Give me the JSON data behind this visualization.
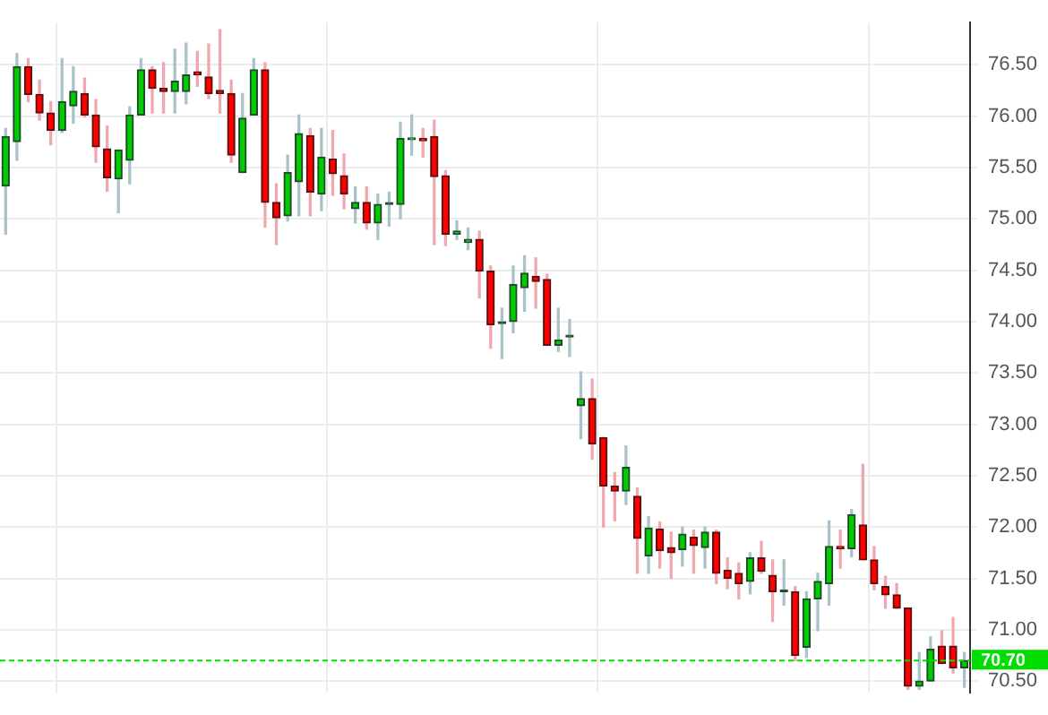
{
  "chart_data": {
    "type": "candlestick",
    "categories": [
      null,
      null,
      null,
      null,
      null,
      null,
      null,
      null,
      null,
      null,
      null,
      null,
      null,
      null,
      null,
      null,
      null,
      null,
      null,
      null,
      null,
      null,
      null,
      null,
      null,
      null,
      null,
      null,
      null,
      null,
      null,
      null,
      null,
      null,
      null,
      null,
      null,
      null,
      null,
      null,
      null,
      null,
      null,
      null,
      null,
      null,
      null,
      null,
      null,
      null,
      null,
      null,
      null,
      null,
      null,
      null,
      null,
      null,
      null,
      null,
      null,
      null,
      null,
      null,
      null,
      null,
      null,
      null,
      null,
      null,
      null,
      null,
      null,
      null,
      null,
      null,
      null,
      null,
      null,
      null,
      null,
      null,
      null,
      null,
      null,
      null
    ],
    "ohlc": [
      [
        75.32,
        75.88,
        74.85,
        75.8
      ],
      [
        75.75,
        76.61,
        75.57,
        76.48
      ],
      [
        76.48,
        76.56,
        76.14,
        76.21
      ],
      [
        76.21,
        76.35,
        75.96,
        76.03
      ],
      [
        76.03,
        76.14,
        75.72,
        75.86
      ],
      [
        75.86,
        76.56,
        75.84,
        76.14
      ],
      [
        76.1,
        76.48,
        75.93,
        76.24
      ],
      [
        76.22,
        76.37,
        75.99,
        76.01
      ],
      [
        76.01,
        76.16,
        75.55,
        75.7
      ],
      [
        75.68,
        75.9,
        75.27,
        75.4
      ],
      [
        75.39,
        75.67,
        75.06,
        75.67
      ],
      [
        75.57,
        76.09,
        75.34,
        76.01
      ],
      [
        76.01,
        76.56,
        76.01,
        76.45
      ],
      [
        76.45,
        76.48,
        76.03,
        76.27
      ],
      [
        76.27,
        76.52,
        76.03,
        76.24
      ],
      [
        76.24,
        76.65,
        76.03,
        76.34
      ],
      [
        76.24,
        76.71,
        76.12,
        76.4
      ],
      [
        76.43,
        76.63,
        76.29,
        76.4
      ],
      [
        76.38,
        76.7,
        76.17,
        76.22
      ],
      [
        76.25,
        76.84,
        76.03,
        76.22
      ],
      [
        76.22,
        76.35,
        75.55,
        75.62
      ],
      [
        75.45,
        76.22,
        75.45,
        75.98
      ],
      [
        76.01,
        76.56,
        76.01,
        76.45
      ],
      [
        76.45,
        76.52,
        74.92,
        75.16
      ],
      [
        75.16,
        75.34,
        74.75,
        75.01
      ],
      [
        75.03,
        75.62,
        74.98,
        75.45
      ],
      [
        75.36,
        76.01,
        75.03,
        75.83
      ],
      [
        75.81,
        75.88,
        75.03,
        75.26
      ],
      [
        75.24,
        75.88,
        75.08,
        75.6
      ],
      [
        75.58,
        75.86,
        75.23,
        75.44
      ],
      [
        75.42,
        75.63,
        75.1,
        75.24
      ],
      [
        75.1,
        75.31,
        74.96,
        75.16
      ],
      [
        75.16,
        75.31,
        74.9,
        74.96
      ],
      [
        74.96,
        75.24,
        74.8,
        75.14
      ],
      [
        75.14,
        75.26,
        74.93,
        75.14
      ],
      [
        75.14,
        75.94,
        75.0,
        75.78
      ],
      [
        75.77,
        76.01,
        75.62,
        75.78
      ],
      [
        75.78,
        75.88,
        75.6,
        75.76
      ],
      [
        75.8,
        75.96,
        74.75,
        75.41
      ],
      [
        75.42,
        75.47,
        74.74,
        74.85
      ],
      [
        74.85,
        74.98,
        74.8,
        74.88
      ],
      [
        74.77,
        74.91,
        74.7,
        74.8
      ],
      [
        74.8,
        74.88,
        74.23,
        74.49
      ],
      [
        74.49,
        74.54,
        73.74,
        73.97
      ],
      [
        73.98,
        74.13,
        73.64,
        73.98
      ],
      [
        74.0,
        74.54,
        73.89,
        74.36
      ],
      [
        74.33,
        74.64,
        74.1,
        74.47
      ],
      [
        74.44,
        74.62,
        74.13,
        74.39
      ],
      [
        74.41,
        74.46,
        73.77,
        73.77
      ],
      [
        73.77,
        74.13,
        73.71,
        73.82
      ],
      [
        73.85,
        74.02,
        73.66,
        73.85
      ],
      [
        73.18,
        73.51,
        72.86,
        73.25
      ],
      [
        73.25,
        73.44,
        72.66,
        72.81
      ],
      [
        72.87,
        72.87,
        72.0,
        72.4
      ],
      [
        72.4,
        72.53,
        72.06,
        72.35
      ],
      [
        72.35,
        72.79,
        72.22,
        72.58
      ],
      [
        72.3,
        72.38,
        71.55,
        71.89
      ],
      [
        71.72,
        72.1,
        71.55,
        71.99
      ],
      [
        71.98,
        72.05,
        71.6,
        71.77
      ],
      [
        71.8,
        71.95,
        71.5,
        71.75
      ],
      [
        71.78,
        72.0,
        71.62,
        71.93
      ],
      [
        71.9,
        71.97,
        71.55,
        71.82
      ],
      [
        71.8,
        72.0,
        71.6,
        71.95
      ],
      [
        71.95,
        71.97,
        71.45,
        71.55
      ],
      [
        71.58,
        71.7,
        71.4,
        71.5
      ],
      [
        71.55,
        71.65,
        71.3,
        71.45
      ],
      [
        71.47,
        71.75,
        71.35,
        71.7
      ],
      [
        71.7,
        71.86,
        71.55,
        71.57
      ],
      [
        71.53,
        71.68,
        71.08,
        71.37
      ],
      [
        71.37,
        71.68,
        71.24,
        71.37
      ],
      [
        71.37,
        71.42,
        70.7,
        70.75
      ],
      [
        70.83,
        71.37,
        70.73,
        71.3
      ],
      [
        71.3,
        71.55,
        70.99,
        71.47
      ],
      [
        71.45,
        72.06,
        71.24,
        71.81
      ],
      [
        71.81,
        71.97,
        71.6,
        71.79
      ],
      [
        71.79,
        72.17,
        71.71,
        72.12
      ],
      [
        72.02,
        72.61,
        71.68,
        71.68
      ],
      [
        71.68,
        71.81,
        71.39,
        71.45
      ],
      [
        71.42,
        71.52,
        71.21,
        71.34
      ],
      [
        71.34,
        71.45,
        71.21,
        71.21
      ],
      [
        71.21,
        71.21,
        70.42,
        70.45
      ],
      [
        70.45,
        70.78,
        70.42,
        70.5
      ],
      [
        70.5,
        70.93,
        70.5,
        70.81
      ],
      [
        70.84,
        70.99,
        70.67,
        70.67
      ],
      [
        70.84,
        71.12,
        70.58,
        70.63
      ],
      [
        70.63,
        70.78,
        70.44,
        70.7
      ]
    ],
    "ylim": [
      70.39,
      76.91
    ],
    "yticks": [
      {
        "value": 70.5,
        "label": "70.50"
      },
      {
        "value": 71,
        "label": "71.00"
      },
      {
        "value": 71.5,
        "label": "71.50"
      },
      {
        "value": 72,
        "label": "72.00"
      },
      {
        "value": 72.5,
        "label": "72.50"
      },
      {
        "value": 73,
        "label": "73.00"
      },
      {
        "value": 73.5,
        "label": "73.50"
      },
      {
        "value": 74,
        "label": "74.00"
      },
      {
        "value": 74.5,
        "label": "74.50"
      },
      {
        "value": 75,
        "label": "75.00"
      },
      {
        "value": 75.5,
        "label": "75.50"
      },
      {
        "value": 76,
        "label": "76.00"
      },
      {
        "value": 76.5,
        "label": "76.50"
      }
    ],
    "ref_lines": [
      {
        "axis": "y",
        "value": 70.7,
        "label": "70.70",
        "color": "#00dd00",
        "line_style": "dashed"
      }
    ],
    "grid": true,
    "tick_labels": "y",
    "legend": false
  }
}
